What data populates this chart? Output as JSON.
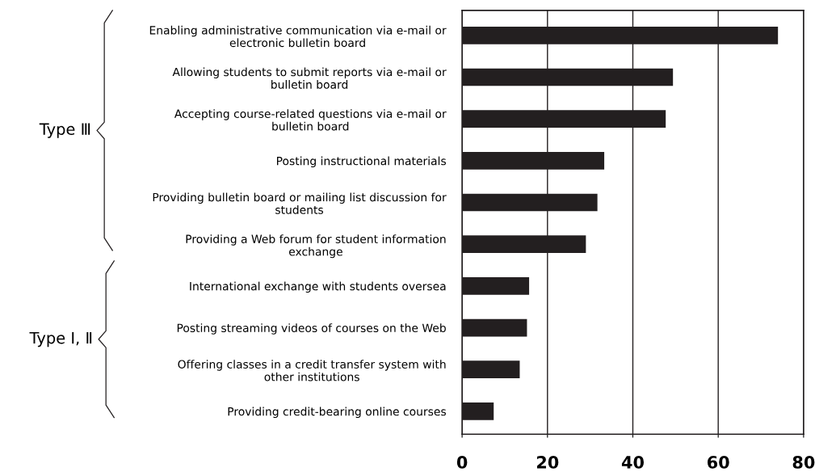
{
  "chart_data": {
    "type": "bar",
    "orientation": "horizontal",
    "categories": [
      "Enabling administrative communication via e-mail or\nelectronic bulletin board",
      "Allowing students to submit reports via e-mail or\nbulletin board",
      "Accepting course-related questions via e-mail or\nbulletin board",
      "Posting instructional materials",
      "Providing bulletin board or mailing list discussion for\nstudents",
      "Providing a Web forum for student information\nexchange",
      "International exchange with students oversea",
      "Posting streaming videos of courses on the Web",
      "Offering classes in a credit transfer system with\nother institutions",
      "Providing credit-bearing online courses"
    ],
    "values": [
      74.0,
      49.4,
      47.7,
      33.3,
      31.7,
      29.0,
      15.7,
      15.2,
      13.5,
      7.4
    ],
    "color": "#231f20",
    "xlim": [
      0,
      80
    ],
    "xticks": [
      0,
      20,
      40,
      60,
      80
    ],
    "grid": "x",
    "annotations": [
      "Type Ⅲ",
      "Type Ⅰ, Ⅱ"
    ]
  }
}
